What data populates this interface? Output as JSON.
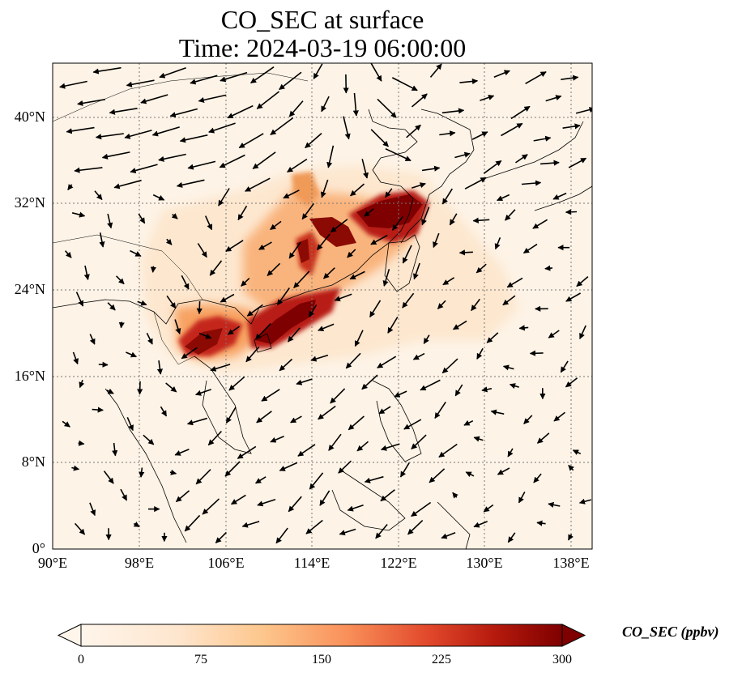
{
  "title": {
    "line1": "CO_SEC at surface",
    "line2": "Time: 2024-03-19 06:00:00"
  },
  "map": {
    "lon_range": [
      90,
      140
    ],
    "lat_range": [
      0,
      45
    ],
    "lat_ticks": [
      "0°",
      "8°N",
      "16°N",
      "24°N",
      "32°N",
      "40°N"
    ],
    "lon_ticks": [
      "90°E",
      "98°E",
      "106°E",
      "114°E",
      "122°E",
      "130°E",
      "138°E"
    ],
    "gridlines": "dotted",
    "field": "CO_SEC concentration with surface wind vectors"
  },
  "colorbar": {
    "label": "CO_SEC (ppbv)",
    "ticks": [
      "0",
      "75",
      "150",
      "225",
      "300"
    ],
    "colormap": [
      "#fff5eb",
      "#fdd49e",
      "#fdae6b",
      "#f16913",
      "#d7301f",
      "#7f0000"
    ],
    "extend": "both"
  }
}
